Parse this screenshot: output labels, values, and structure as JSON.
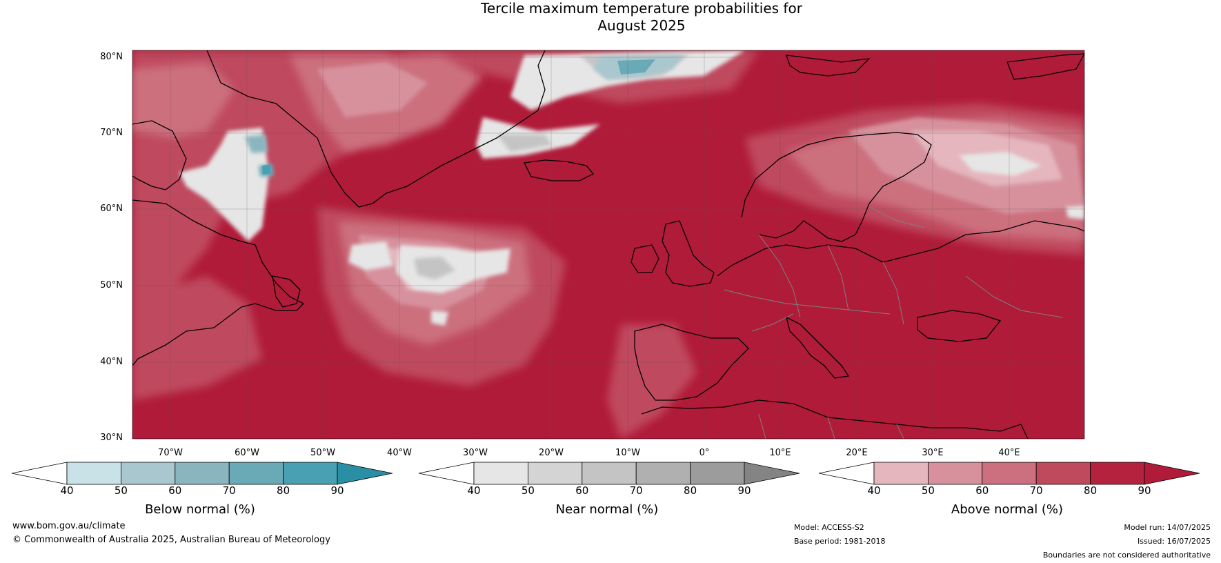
{
  "title": {
    "line1": "Tercile maximum temperature probabilities for",
    "line2": "August 2025"
  },
  "map": {
    "latitudes": [
      "80°N",
      "70°N",
      "60°N",
      "50°N",
      "40°N",
      "30°N"
    ],
    "longitudes": [
      "70°W",
      "60°W",
      "50°W",
      "40°W",
      "30°W",
      "20°W",
      "10°W",
      "0°",
      "10°E",
      "20°E",
      "30°E",
      "40°E"
    ],
    "colors": {
      "above": [
        "#e5b6bd",
        "#d7919d",
        "#cc6f7e",
        "#bf4a5e",
        "#b4223e",
        "#b01b39"
      ],
      "near": [
        "#e6e6e6",
        "#d4d4d4",
        "#c4c4c4",
        "#b0b0b0",
        "#9c9c9c",
        "#848484"
      ],
      "below": [
        "#c9e2e8",
        "#a9c7cf",
        "#8ab5bf",
        "#6aaab6",
        "#48a0b2",
        "#2a8fa5"
      ],
      "coastline": "#000000",
      "borders": "#808080"
    }
  },
  "colorbars": [
    {
      "title": "Below normal (%)",
      "ticks": [
        "40",
        "50",
        "60",
        "70",
        "80",
        "90"
      ],
      "colors": [
        "#c9e2e8",
        "#a9c7cf",
        "#8ab5bf",
        "#6aaab6",
        "#48a0b2"
      ],
      "extend_color": "#2a8fa5"
    },
    {
      "title": "Near normal (%)",
      "ticks": [
        "40",
        "50",
        "60",
        "70",
        "80",
        "90"
      ],
      "colors": [
        "#e6e6e6",
        "#d4d4d4",
        "#c4c4c4",
        "#b0b0b0",
        "#9c9c9c"
      ],
      "extend_color": "#848484"
    },
    {
      "title": "Above normal (%)",
      "ticks": [
        "40",
        "50",
        "60",
        "70",
        "80",
        "90"
      ],
      "colors": [
        "#e5b6bd",
        "#d7919d",
        "#cc6f7e",
        "#bf4a5e",
        "#b4223e"
      ],
      "extend_color": "#b01b39"
    }
  ],
  "footer": {
    "website": "www.bom.gov.au/climate",
    "copyright": "© Commonwealth of Australia 2025, Australian Bureau of Meteorology",
    "model": "Model: ACCESS-S2",
    "base_period": "Base period: 1981-2018",
    "model_run": "Model run: 14/07/2025",
    "issued": "Issued: 16/07/2025",
    "disclaimer": "Boundaries are not considered authoritative"
  }
}
